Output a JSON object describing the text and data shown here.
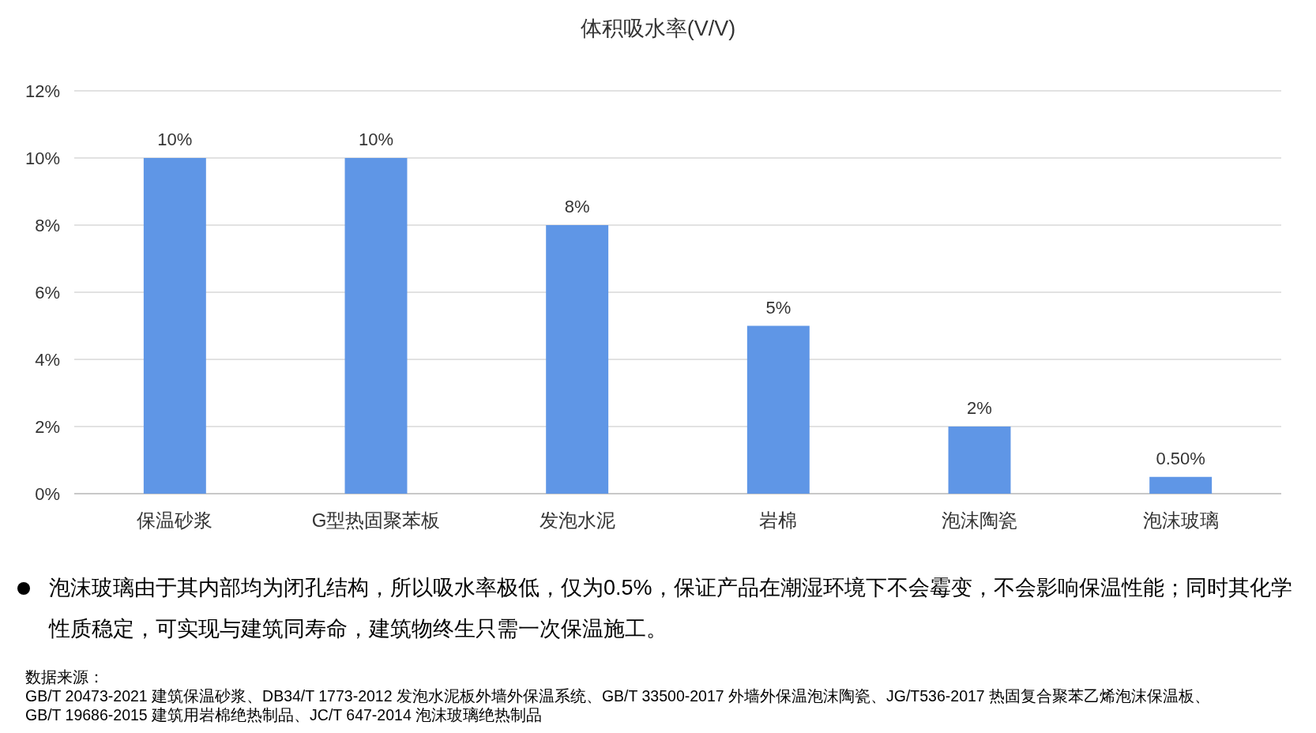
{
  "chart_data": {
    "type": "bar",
    "title": "体积吸水率(V/V)",
    "categories": [
      "保温砂浆",
      "G型热固聚苯板",
      "发泡水泥",
      "岩棉",
      "泡沫陶瓷",
      "泡沫玻璃"
    ],
    "values": [
      10,
      10,
      8,
      5,
      2,
      0.5
    ],
    "value_labels": [
      "10%",
      "10%",
      "8%",
      "5%",
      "2%",
      "0.50%"
    ],
    "color": "#5f96e6",
    "ylim": [
      0,
      12
    ],
    "yticks": [
      {
        "value": 0,
        "label": "0%"
      },
      {
        "value": 2,
        "label": "2%"
      },
      {
        "value": 4,
        "label": "4%"
      },
      {
        "value": 6,
        "label": "6%"
      },
      {
        "value": 8,
        "label": "8%"
      },
      {
        "value": 10,
        "label": "10%"
      },
      {
        "value": 12,
        "label": "12%"
      }
    ],
    "grid": "y",
    "annotations": [
      "泡沫玻璃由于其内部均为闭孔结构，所以吸水率极低，仅为0.5%，保证产品在潮湿环境下不会霉变，不会影响保温性能；同时其化学性质稳定，可实现与建筑同寿命，建筑物终生只需一次保温施工。",
      "数据来源：",
      "GB/T 20473-2021 建筑保温砂浆、DB34/T 1773-2012 发泡水泥板外墙外保温系统、GB/T 33500-2017 外墙外保温泡沫陶瓷、JG/T536-2017 热固复合聚苯乙烯泡沫保温板、",
      "GB/T 19686-2015 建筑用岩棉绝热制品、JC/T 647-2014 泡沫玻璃绝热制品"
    ]
  }
}
